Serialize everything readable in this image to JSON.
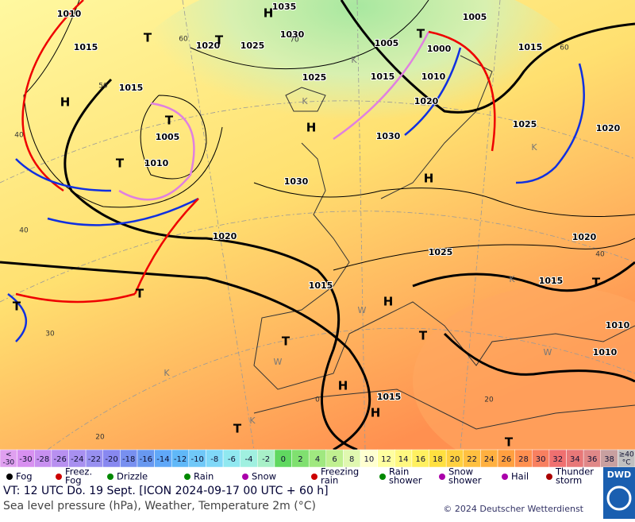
{
  "map": {
    "pressure_labels": [
      "1010",
      "1015",
      "1020",
      "1025",
      "1035",
      "1030",
      "1005",
      "1005",
      "1000",
      "1015",
      "1015",
      "1025",
      "1015",
      "1010",
      "1020",
      "1005",
      "1010",
      "1030",
      "1025",
      "1020",
      "1030",
      "1020",
      "1025",
      "1020",
      "1015",
      "1015",
      "1010",
      "1010",
      "1015"
    ],
    "pressure_centers": [
      "H",
      "T",
      "T",
      "H",
      "H",
      "T",
      "T",
      "H",
      "T",
      "T",
      "T",
      "H",
      "T",
      "T",
      "H",
      "H",
      "T",
      "T",
      "T"
    ],
    "weather_letters": [
      "K",
      "K",
      "K",
      "K",
      "K",
      "K",
      "W",
      "W",
      "W"
    ],
    "graticule_labels": [
      "60",
      "50",
      "40",
      "40",
      "30",
      "20",
      "0",
      "20",
      "40",
      "60",
      "70"
    ]
  },
  "temperature_scale": {
    "labels": [
      [
        "<",
        "-30"
      ],
      "-30",
      "-28",
      "-26",
      "-24",
      "-22",
      "-20",
      "-18",
      "-16",
      "-14",
      "-12",
      "-10",
      "-8",
      "-6",
      "-4",
      "-2",
      "0",
      "2",
      "4",
      "6",
      "8",
      "10",
      "12",
      "14",
      "16",
      "18",
      "20",
      "22",
      "24",
      "26",
      "28",
      "30",
      "32",
      "34",
      "36",
      "38",
      [
        "≥40",
        "°C"
      ]
    ],
    "colors": [
      "#e0a0f0",
      "#d890f0",
      "#c890f0",
      "#b890f0",
      "#a890f0",
      "#9890f0",
      "#8888f0",
      "#7890f0",
      "#6898f0",
      "#60a8f8",
      "#60b8f8",
      "#70c8f8",
      "#80d8f8",
      "#90e8f0",
      "#a0f0e0",
      "#a8f0c8",
      "#60d860",
      "#80e070",
      "#a0e880",
      "#c0f090",
      "#e0f8b0",
      "#ffffd0",
      "#ffffa0",
      "#fff880",
      "#fff060",
      "#ffe040",
      "#ffd040",
      "#ffc040",
      "#ffb040",
      "#ffa040",
      "#ff9050",
      "#f88060",
      "#f07070",
      "#e87878",
      "#e08888",
      "#c8a0a0",
      "#c0c0c0"
    ]
  },
  "weather_legend": [
    [
      "Fog"
    ],
    [
      "Freez.",
      "Fog"
    ],
    [
      "Drizzle"
    ],
    [
      "Rain"
    ],
    [
      "Snow"
    ],
    [
      "Freezing",
      "rain"
    ],
    [
      "Rain",
      "shower"
    ],
    [
      "Snow",
      "shower"
    ],
    [
      "Hail"
    ],
    [
      "Thunder",
      "storm"
    ]
  ],
  "footer": {
    "valid_time": "VT: 12 UTC Do.  19 Sept. [ICON 2024-09-17  00 UTC + 60 h]",
    "description": "Sea level pressure (hPa), Weather, Temperature 2m (°C)",
    "copyright": "© 2024 Deutscher Wetterdienst",
    "logo": "DWD"
  }
}
